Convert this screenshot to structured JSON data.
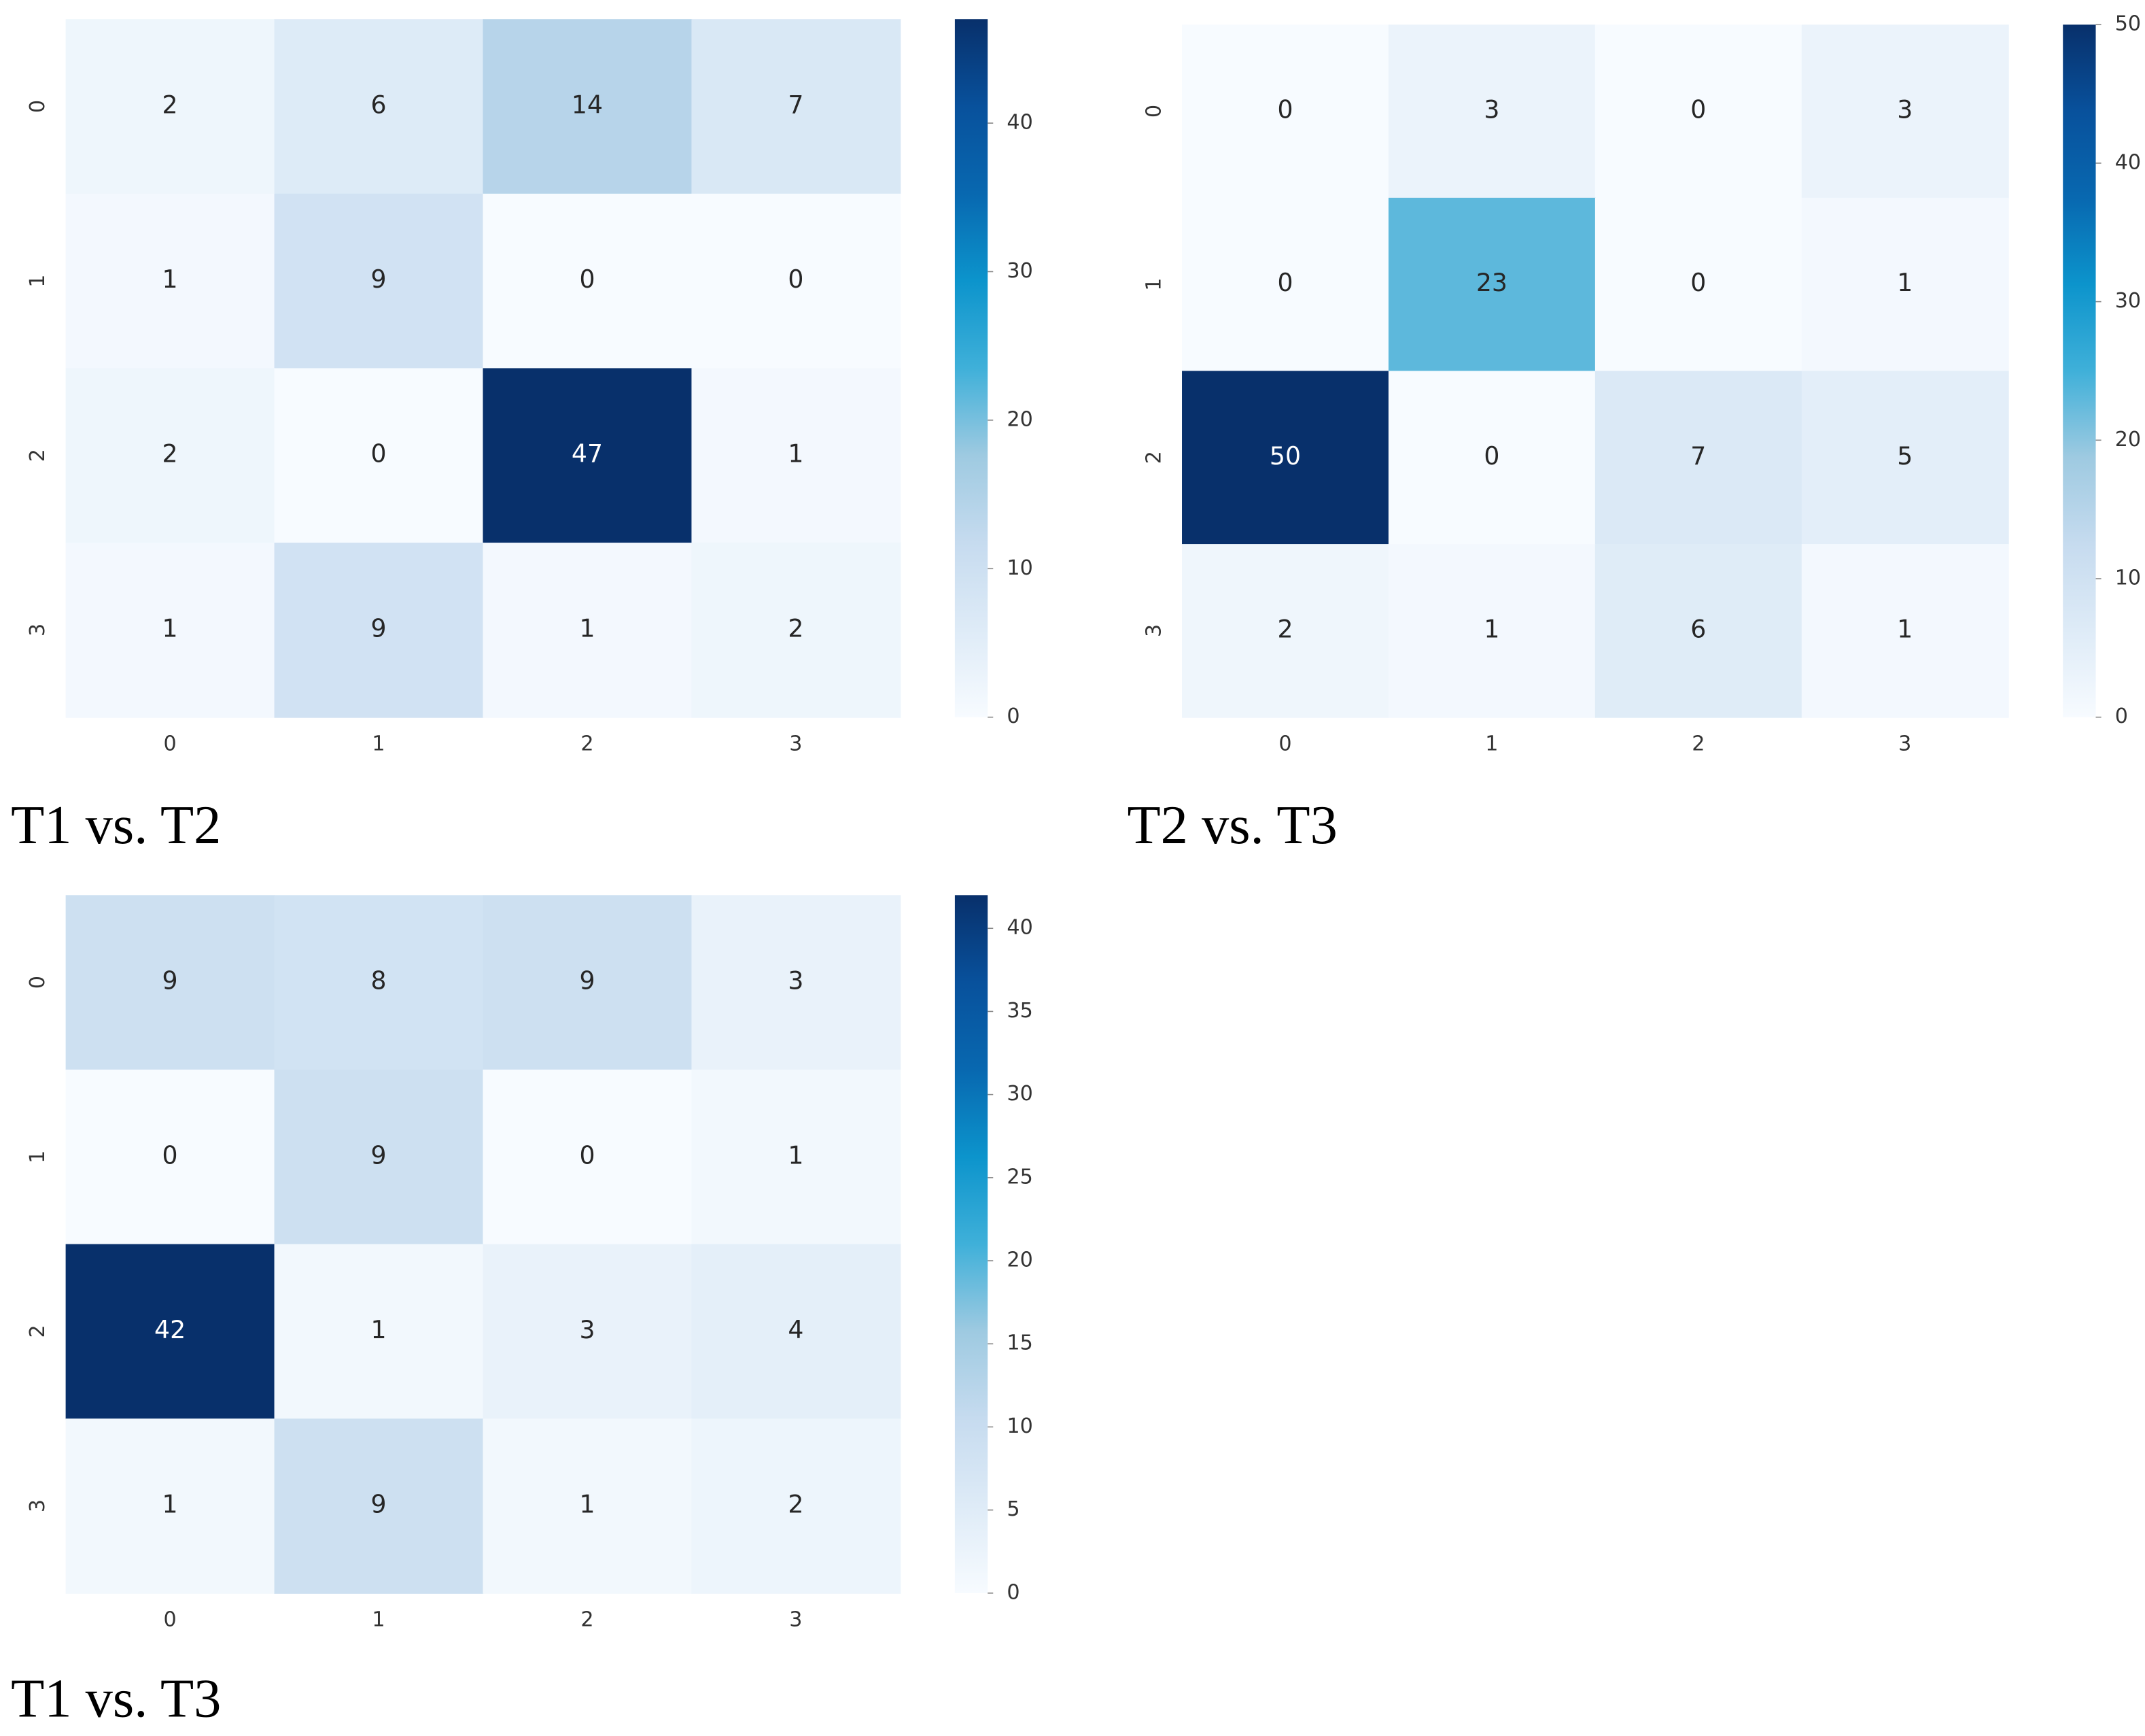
{
  "chart_data": [
    {
      "type": "heatmap",
      "title": "T1 vs. T2",
      "x_categories": [
        "0",
        "1",
        "2",
        "3"
      ],
      "y_categories": [
        "0",
        "1",
        "2",
        "3"
      ],
      "values": [
        [
          2,
          6,
          14,
          7
        ],
        [
          1,
          9,
          0,
          0
        ],
        [
          2,
          0,
          47,
          1
        ],
        [
          1,
          9,
          1,
          2
        ]
      ],
      "zlim": [
        0,
        47
      ],
      "zticks": [
        0,
        10,
        20,
        30,
        40
      ],
      "colors": [
        "#f7fbff",
        "#deebf7",
        "#c6dbef",
        "#9ecae1",
        "#3fb0d9",
        "#0c94cc",
        "#0868b0",
        "#08519c",
        "#08306b"
      ]
    },
    {
      "type": "heatmap",
      "title": "T2 vs. T3",
      "x_categories": [
        "0",
        "1",
        "2",
        "3"
      ],
      "y_categories": [
        "0",
        "1",
        "2",
        "3"
      ],
      "values": [
        [
          0,
          3,
          0,
          3
        ],
        [
          0,
          23,
          0,
          1
        ],
        [
          50,
          0,
          7,
          5
        ],
        [
          2,
          1,
          6,
          1
        ]
      ],
      "zlim": [
        0,
        50
      ],
      "zticks": [
        0,
        10,
        20,
        30,
        40,
        50
      ],
      "colors": [
        "#f7fbff",
        "#deebf7",
        "#c6dbef",
        "#9ecae1",
        "#3fb0d9",
        "#0c94cc",
        "#0868b0",
        "#08519c",
        "#08306b"
      ]
    },
    {
      "type": "heatmap",
      "title": "T1 vs. T3",
      "x_categories": [
        "0",
        "1",
        "2",
        "3"
      ],
      "y_categories": [
        "0",
        "1",
        "2",
        "3"
      ],
      "values": [
        [
          9,
          8,
          9,
          3
        ],
        [
          0,
          9,
          0,
          1
        ],
        [
          42,
          1,
          3,
          4
        ],
        [
          1,
          9,
          1,
          2
        ]
      ],
      "zlim": [
        0,
        42
      ],
      "zticks": [
        0,
        5,
        10,
        15,
        20,
        25,
        30,
        35,
        40
      ],
      "colors": [
        "#f7fbff",
        "#deebf7",
        "#c6dbef",
        "#9ecae1",
        "#3fb0d9",
        "#0c94cc",
        "#0868b0",
        "#08519c",
        "#08306b"
      ]
    }
  ]
}
